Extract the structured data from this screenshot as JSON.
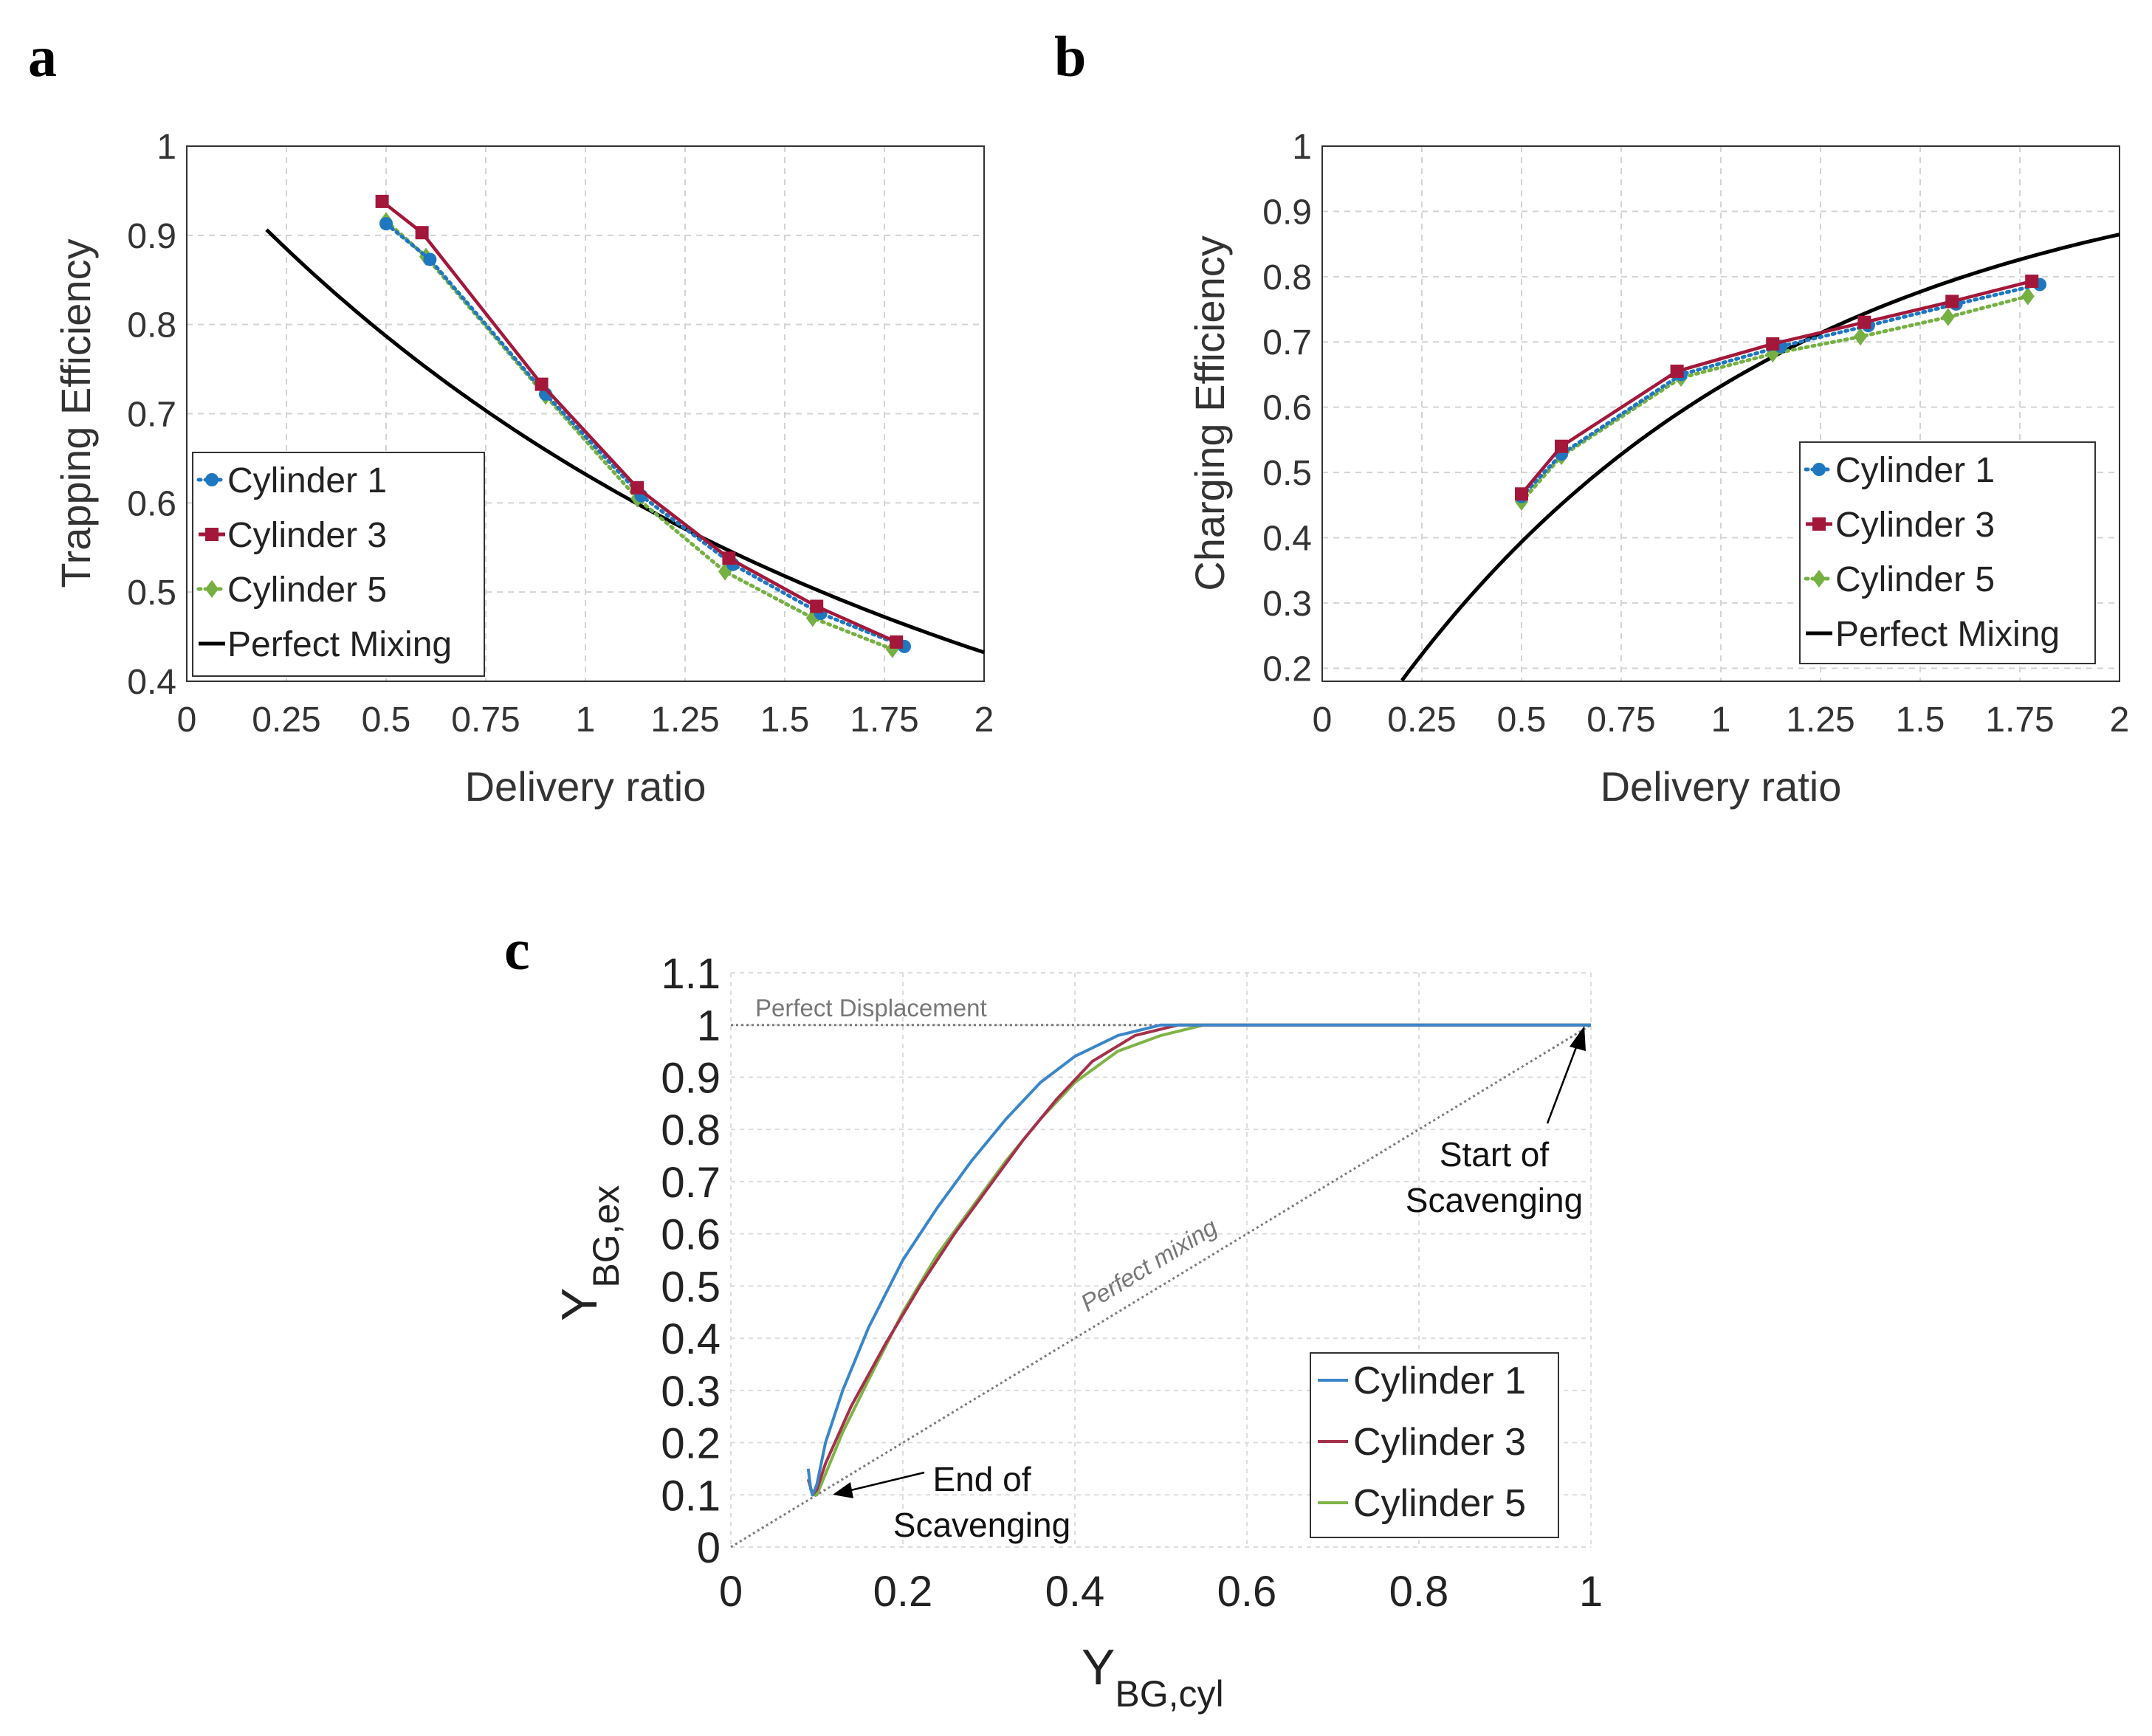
{
  "colors": {
    "cyl1": "#1f77c0",
    "cyl3": "#a3183a",
    "cyl5": "#76b043",
    "mix": "#000000",
    "c_cyl1": "#3a86c8",
    "c_cyl3": "#a4304a",
    "c_cyl5": "#7fb347",
    "ref": "#7a7a7a",
    "grid": "#d4d4d4"
  },
  "chart_data": [
    {
      "panel": "a",
      "type": "line",
      "xlabel": "Delivery ratio",
      "ylabel": "Trapping Efficiency",
      "xlim": [
        0,
        2
      ],
      "ylim": [
        0.4,
        1
      ],
      "xticks": [
        0,
        0.25,
        0.5,
        0.75,
        1,
        1.25,
        1.5,
        1.75,
        2
      ],
      "xtick_labels": [
        "0",
        "0.25",
        "0.5",
        "0.75",
        "1",
        "1.25",
        "1.5",
        "1.75",
        "2"
      ],
      "yticks": [
        0.4,
        0.5,
        0.6,
        0.7,
        0.8,
        0.9,
        1
      ],
      "ytick_labels": [
        "0.4",
        "0.5",
        "0.6",
        "0.7",
        "0.8",
        "0.9",
        "1"
      ],
      "legend": [
        "Cylinder 1",
        "Cylinder 3",
        "Cylinder 5",
        "Perfect Mixing"
      ],
      "series": [
        {
          "name": "Cylinder 1",
          "color_key": "cyl1",
          "marker": "circle",
          "dash": "dot",
          "x": [
            0.5,
            0.61,
            0.9,
            1.14,
            1.37,
            1.59,
            1.8
          ],
          "y": [
            0.913,
            0.873,
            0.722,
            0.608,
            0.531,
            0.476,
            0.439
          ]
        },
        {
          "name": "Cylinder 3",
          "color_key": "cyl3",
          "marker": "square",
          "dash": "solid",
          "x": [
            0.49,
            0.59,
            0.89,
            1.13,
            1.36,
            1.58,
            1.78
          ],
          "y": [
            0.938,
            0.903,
            0.733,
            0.617,
            0.538,
            0.484,
            0.444
          ]
        },
        {
          "name": "Cylinder 5",
          "color_key": "cyl5",
          "marker": "diamond",
          "dash": "dot",
          "x": [
            0.5,
            0.6,
            0.9,
            1.13,
            1.35,
            1.57,
            1.77
          ],
          "y": [
            0.916,
            0.876,
            0.72,
            0.605,
            0.523,
            0.471,
            0.436
          ]
        },
        {
          "name": "Perfect Mixing",
          "color_key": "mix",
          "marker": "none",
          "dash": "solid",
          "function": "trapping_mixing",
          "x": [
            0.2,
            0.3,
            0.4,
            0.5,
            0.6,
            0.7,
            0.8,
            0.9,
            1.0,
            1.1,
            1.2,
            1.3,
            1.4,
            1.5,
            1.6,
            1.7,
            1.8,
            1.9,
            2.0
          ],
          "y": [
            0.906,
            0.864,
            0.824,
            0.787,
            0.752,
            0.719,
            0.688,
            0.659,
            0.632,
            0.607,
            0.582,
            0.56,
            0.538,
            0.518,
            0.498,
            0.479,
            0.462,
            0.445,
            0.432
          ]
        }
      ]
    },
    {
      "panel": "b",
      "type": "line",
      "xlabel": "Delivery ratio",
      "ylabel": "Charging Efficiency",
      "xlim": [
        0,
        2
      ],
      "ylim": [
        0.18,
        1
      ],
      "xticks": [
        0,
        0.25,
        0.5,
        0.75,
        1,
        1.25,
        1.5,
        1.75,
        2
      ],
      "xtick_labels": [
        "0",
        "0.25",
        "0.5",
        "0.75",
        "1",
        "1.25",
        "1.5",
        "1.75",
        "2"
      ],
      "yticks": [
        0.2,
        0.3,
        0.4,
        0.5,
        0.6,
        0.7,
        0.8,
        0.9,
        1
      ],
      "ytick_labels": [
        "0.2",
        "0.3",
        "0.4",
        "0.5",
        "0.6",
        "0.7",
        "0.8",
        "0.9",
        "1"
      ],
      "legend": [
        "Cylinder 1",
        "Cylinder 3",
        "Cylinder 5",
        "Perfect Mixing"
      ],
      "series": [
        {
          "name": "Cylinder 1",
          "color_key": "cyl1",
          "marker": "circle",
          "dash": "dot",
          "x": [
            0.5,
            0.6,
            0.9,
            1.15,
            1.37,
            1.59,
            1.8
          ],
          "y": [
            0.463,
            0.528,
            0.65,
            0.693,
            0.725,
            0.758,
            0.788
          ]
        },
        {
          "name": "Cylinder 3",
          "color_key": "cyl3",
          "marker": "square",
          "dash": "solid",
          "x": [
            0.5,
            0.6,
            0.89,
            1.13,
            1.36,
            1.58,
            1.78
          ],
          "y": [
            0.467,
            0.54,
            0.655,
            0.697,
            0.73,
            0.762,
            0.793
          ]
        },
        {
          "name": "Cylinder 5",
          "color_key": "cyl5",
          "marker": "diamond",
          "dash": "dot",
          "x": [
            0.5,
            0.6,
            0.9,
            1.13,
            1.35,
            1.57,
            1.77
          ],
          "y": [
            0.455,
            0.525,
            0.645,
            0.682,
            0.708,
            0.738,
            0.77
          ]
        },
        {
          "name": "Perfect Mixing",
          "color_key": "mix",
          "marker": "none",
          "dash": "solid",
          "function": "charging_mixing",
          "x": [
            0.2,
            0.3,
            0.4,
            0.5,
            0.6,
            0.7,
            0.8,
            0.9,
            1.0,
            1.1,
            1.2,
            1.3,
            1.4,
            1.5,
            1.6,
            1.7,
            1.8,
            1.9,
            2.0
          ],
          "y": [
            0.181,
            0.259,
            0.33,
            0.393,
            0.451,
            0.503,
            0.551,
            0.593,
            0.632,
            0.667,
            0.699,
            0.727,
            0.753,
            0.777,
            0.798,
            0.817,
            0.835,
            0.85,
            0.865
          ]
        }
      ]
    },
    {
      "panel": "c",
      "type": "line",
      "xlabel": "Y",
      "xlabel_sub": "BG,cyl",
      "ylabel": "Y",
      "ylabel_sub": "BG,ex",
      "xlim": [
        0,
        1
      ],
      "ylim": [
        0,
        1.1
      ],
      "xticks": [
        0,
        0.2,
        0.4,
        0.6,
        0.8,
        1
      ],
      "xtick_labels": [
        "0",
        "0.2",
        "0.4",
        "0.6",
        "0.8",
        "1"
      ],
      "yticks": [
        0,
        0.1,
        0.2,
        0.3,
        0.4,
        0.5,
        0.6,
        0.7,
        0.8,
        0.9,
        1,
        1.1
      ],
      "ytick_labels": [
        "0",
        "0.1",
        "0.2",
        "0.3",
        "0.4",
        "0.5",
        "0.6",
        "0.7",
        "0.8",
        "0.9",
        "1",
        "1.1"
      ],
      "legend": [
        "Cylinder 1",
        "Cylinder 3",
        "Cylinder 5"
      ],
      "series": [
        {
          "name": "Cylinder 1",
          "color_key": "c_cyl1",
          "x": [
            0.09,
            0.093,
            0.095,
            0.1,
            0.11,
            0.13,
            0.16,
            0.2,
            0.24,
            0.28,
            0.32,
            0.36,
            0.4,
            0.45,
            0.5,
            0.6,
            1.0
          ],
          "y": [
            0.15,
            0.11,
            0.1,
            0.12,
            0.2,
            0.3,
            0.42,
            0.55,
            0.65,
            0.74,
            0.82,
            0.89,
            0.94,
            0.98,
            1.0,
            1.0,
            1.0
          ]
        },
        {
          "name": "Cylinder 3",
          "color_key": "c_cyl3",
          "x": [
            0.09,
            0.095,
            0.1,
            0.11,
            0.14,
            0.18,
            0.22,
            0.26,
            0.3,
            0.34,
            0.38,
            0.42,
            0.47,
            0.52,
            0.6,
            1.0
          ],
          "y": [
            0.13,
            0.1,
            0.11,
            0.16,
            0.27,
            0.39,
            0.5,
            0.6,
            0.69,
            0.78,
            0.86,
            0.93,
            0.98,
            1.0,
            1.0,
            1.0
          ]
        },
        {
          "name": "Cylinder 5",
          "color_key": "c_cyl5",
          "x": [
            0.094,
            0.1,
            0.11,
            0.13,
            0.16,
            0.2,
            0.24,
            0.28,
            0.32,
            0.36,
            0.4,
            0.45,
            0.5,
            0.55,
            0.6,
            1.0
          ],
          "y": [
            0.1,
            0.1,
            0.14,
            0.22,
            0.32,
            0.45,
            0.56,
            0.65,
            0.74,
            0.82,
            0.89,
            0.95,
            0.98,
            1.0,
            1.0,
            1.0
          ]
        }
      ],
      "references": [
        {
          "name": "Perfect Displacement",
          "label": "Perfect Displacement",
          "x": [
            0,
            1
          ],
          "y": [
            1,
            1
          ]
        },
        {
          "name": "Perfect mixing",
          "label": "Perfect mixing",
          "x": [
            0,
            1
          ],
          "y": [
            0,
            1
          ]
        }
      ],
      "annotations": [
        {
          "name": "start",
          "lines": [
            "Start of",
            "Scavenging"
          ],
          "point": [
            1,
            1
          ]
        },
        {
          "name": "end",
          "lines": [
            "End of",
            "Scavenging"
          ],
          "point": [
            0.1,
            0.11
          ]
        }
      ]
    }
  ],
  "panel_letters": [
    "a",
    "b",
    "c"
  ]
}
